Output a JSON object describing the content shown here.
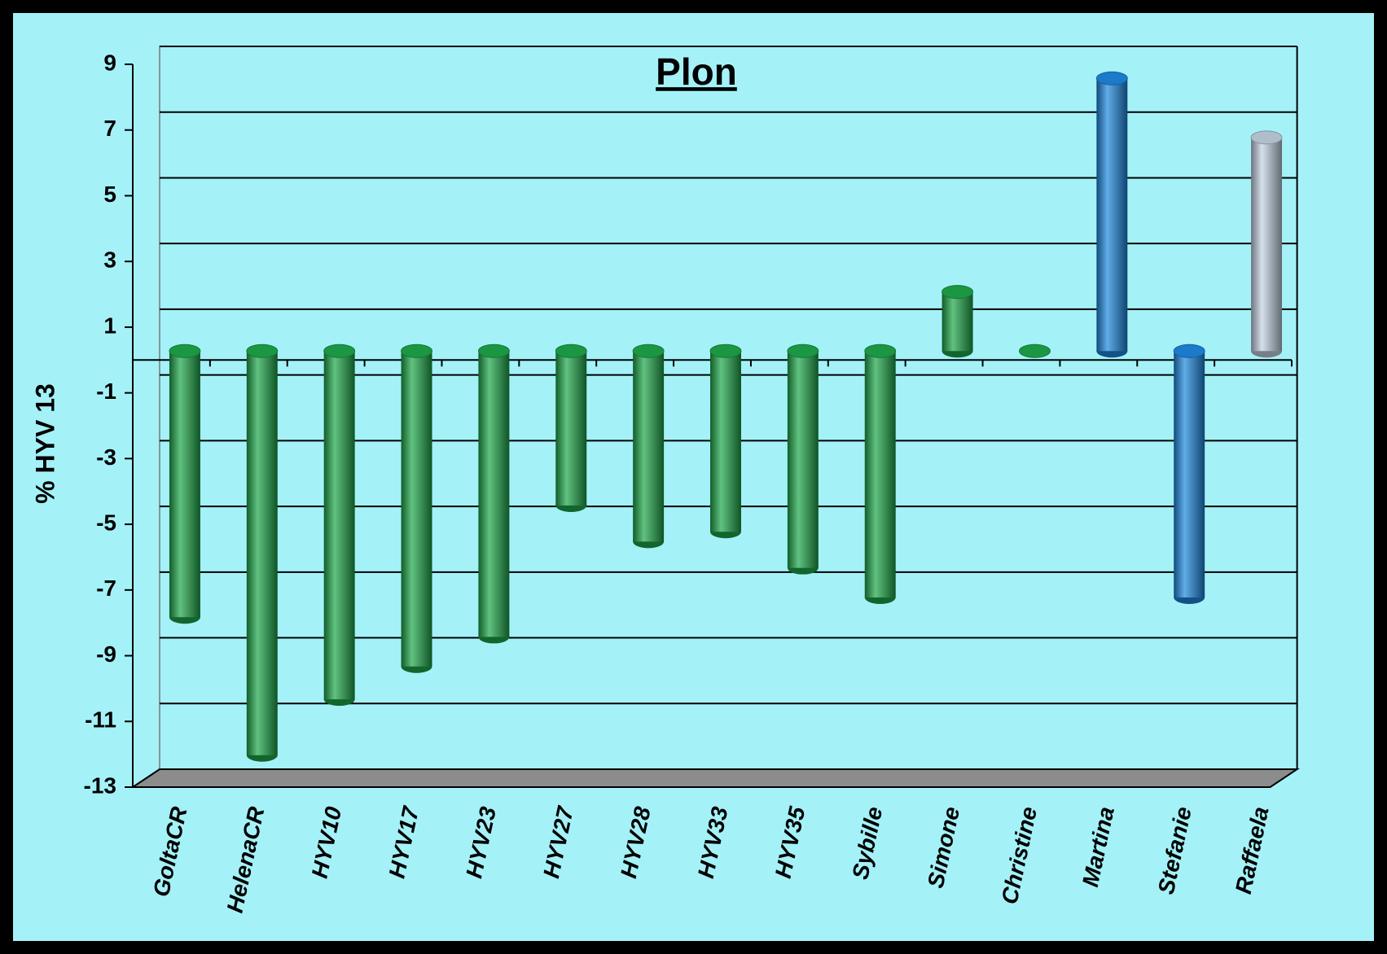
{
  "chart_data": {
    "type": "bar",
    "title": "Plon",
    "y_label": "% HYV 13",
    "categories": [
      "GoltaCR",
      "HelenaCR",
      "HYV10",
      "HYV17",
      "HYV23",
      "HYV27",
      "HYV28",
      "HYV33",
      "HYV35",
      "Sybille",
      "Simone",
      "Christine",
      "Martina",
      "Stefanie",
      "Raffaela"
    ],
    "values": [
      -8.1,
      -12.3,
      -10.6,
      -9.6,
      -8.7,
      -4.7,
      -5.8,
      -5.5,
      -6.6,
      -7.5,
      1.8,
      0,
      8.3,
      -7.5,
      6.5
    ],
    "colors": [
      "#1ea84a",
      "#1ea84a",
      "#1ea84a",
      "#1ea84a",
      "#1ea84a",
      "#1ea84a",
      "#1ea84a",
      "#1ea84a",
      "#1ea84a",
      "#1ea84a",
      "#1ea84a",
      "#1ea84a",
      "#1e88e0",
      "#1e88e0",
      "#c4d2e2"
    ],
    "ylim": [
      -13,
      9
    ],
    "yticks": [
      -13,
      -11,
      -9,
      -7,
      -5,
      -3,
      -1,
      1,
      3,
      5,
      7,
      9
    ],
    "grid": true
  }
}
